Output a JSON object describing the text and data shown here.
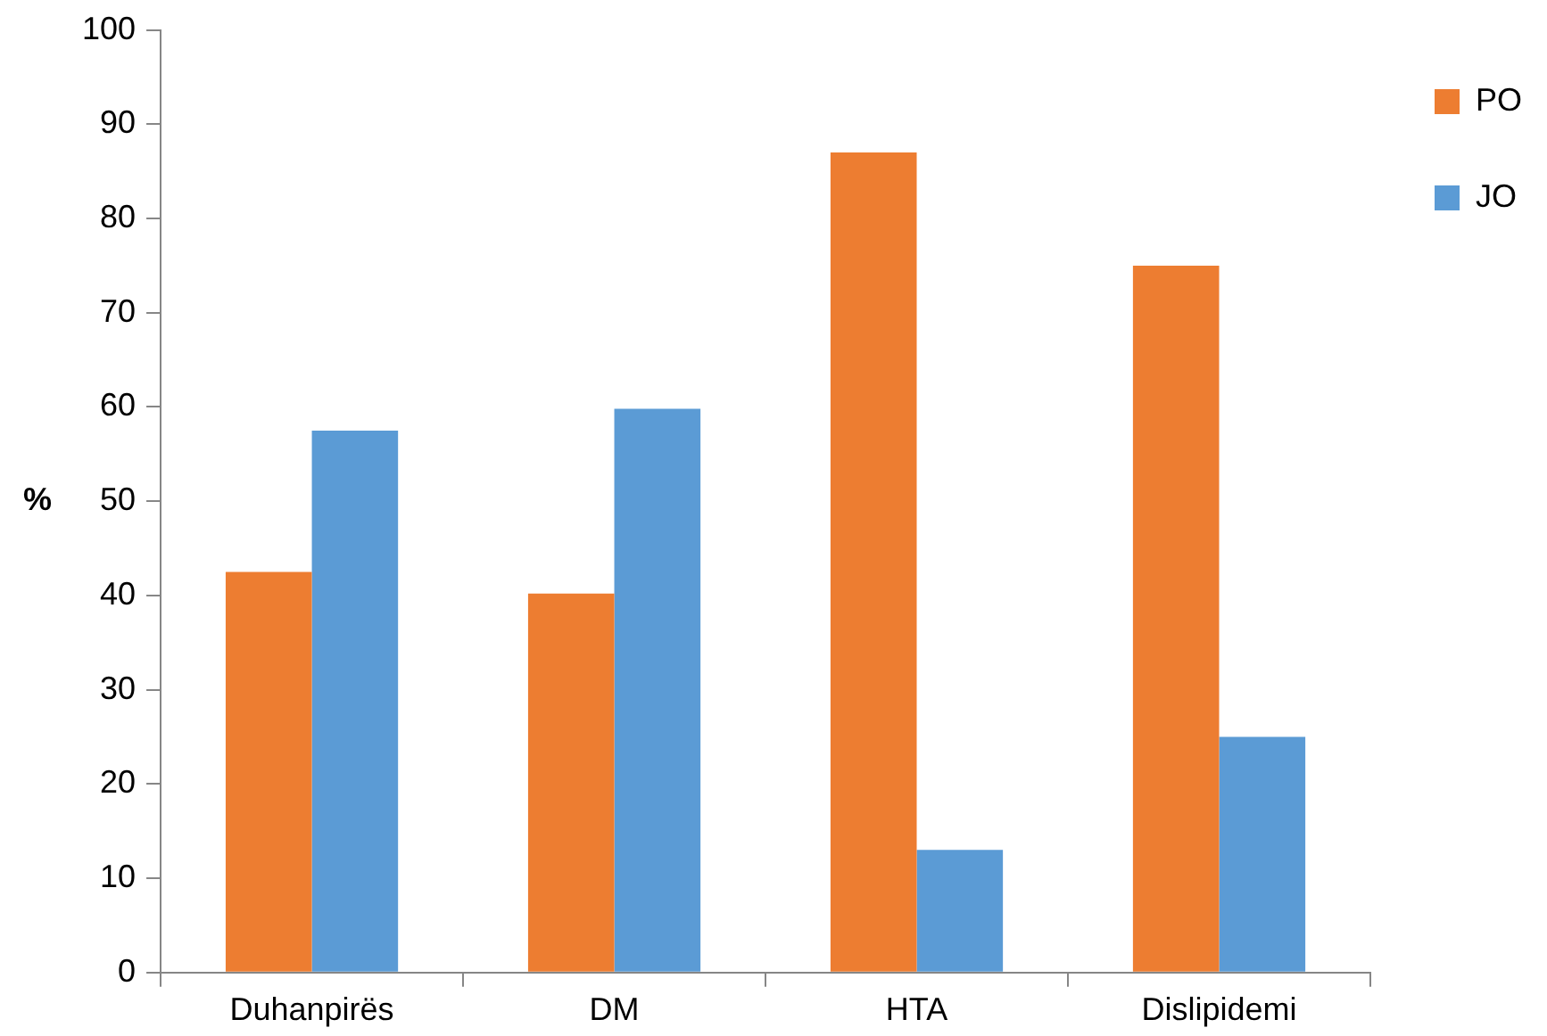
{
  "chart_data": {
    "type": "bar",
    "ylabel": "%",
    "categories": [
      "Duhanpirës",
      "DM",
      "HTA",
      "Dislipidemi"
    ],
    "series": [
      {
        "name": "PO",
        "color": "#ed7d31",
        "values": [
          42.5,
          40.2,
          87,
          75
        ]
      },
      {
        "name": "JO",
        "color": "#5b9bd5",
        "values": [
          57.5,
          59.8,
          13,
          25
        ]
      }
    ],
    "ylim": [
      0,
      100
    ],
    "yticks": [
      0,
      10,
      20,
      30,
      40,
      50,
      60,
      70,
      80,
      90,
      100
    ],
    "grid": false,
    "legend": "right"
  }
}
